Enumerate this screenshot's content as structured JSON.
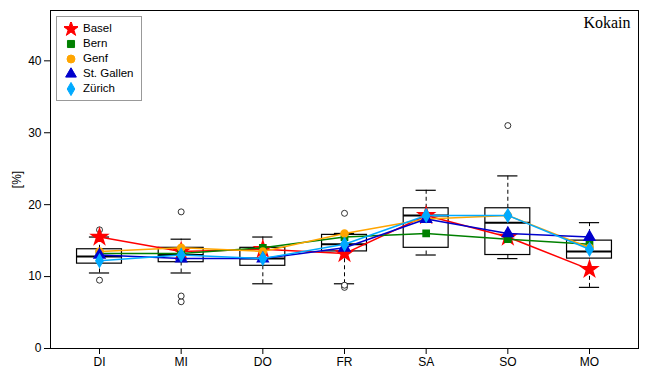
{
  "chart_data": {
    "type": "box",
    "title": "Kokain",
    "ylabel": "[%]",
    "categories": [
      "DI",
      "MI",
      "DO",
      "FR",
      "SA",
      "SO",
      "MO"
    ],
    "boxes": [
      {
        "q1": 11.8,
        "median": 12.8,
        "q3": 13.8,
        "whisker_low": 10.5,
        "whisker_high": 15.5,
        "outliers": [
          9.5,
          16.5
        ]
      },
      {
        "q1": 12.0,
        "median": 13.0,
        "q3": 14.0,
        "whisker_low": 10.5,
        "whisker_high": 15.2,
        "outliers": [
          6.5,
          7.3,
          19.0
        ]
      },
      {
        "q1": 11.5,
        "median": 12.5,
        "q3": 14.0,
        "whisker_low": 9.0,
        "whisker_high": 15.5,
        "outliers": []
      },
      {
        "q1": 13.5,
        "median": 14.5,
        "q3": 15.8,
        "whisker_low": 9.0,
        "whisker_high": 16.0,
        "outliers": [
          8.5,
          8.8,
          18.8
        ]
      },
      {
        "q1": 14.0,
        "median": 18.5,
        "q3": 19.5,
        "whisker_low": 13.0,
        "whisker_high": 22.0,
        "outliers": []
      },
      {
        "q1": 13.0,
        "median": 17.5,
        "q3": 19.5,
        "whisker_low": 12.5,
        "whisker_high": 24.0,
        "outliers": [
          31.0
        ]
      },
      {
        "q1": 12.5,
        "median": 13.5,
        "q3": 15.0,
        "whisker_low": 8.5,
        "whisker_high": 17.5,
        "outliers": []
      }
    ],
    "series": [
      {
        "name": "Basel",
        "color": "#ff0000",
        "marker": "star",
        "values": [
          15.5,
          13.5,
          13.8,
          13.2,
          18.5,
          15.5,
          11.0
        ]
      },
      {
        "name": "Bern",
        "color": "#008000",
        "marker": "square",
        "values": [
          13.2,
          13.2,
          14.0,
          15.5,
          16.0,
          15.2,
          14.5
        ]
      },
      {
        "name": "Genf",
        "color": "#ffa500",
        "marker": "circle",
        "values": [
          13.5,
          14.0,
          13.5,
          16.0,
          18.0,
          18.5,
          14.0
        ]
      },
      {
        "name": "St. Gallen",
        "color": "#0000cc",
        "marker": "triangle",
        "values": [
          13.0,
          12.5,
          12.5,
          14.0,
          18.0,
          16.0,
          15.5
        ]
      },
      {
        "name": "Zürich",
        "color": "#00aaff",
        "marker": "diamond",
        "values": [
          12.2,
          13.0,
          12.5,
          14.5,
          18.5,
          18.5,
          13.8
        ]
      }
    ],
    "ylim": [
      0,
      47
    ],
    "yticks": [
      0,
      10,
      20,
      30,
      40
    ],
    "grid": false,
    "legend": "upper left"
  }
}
